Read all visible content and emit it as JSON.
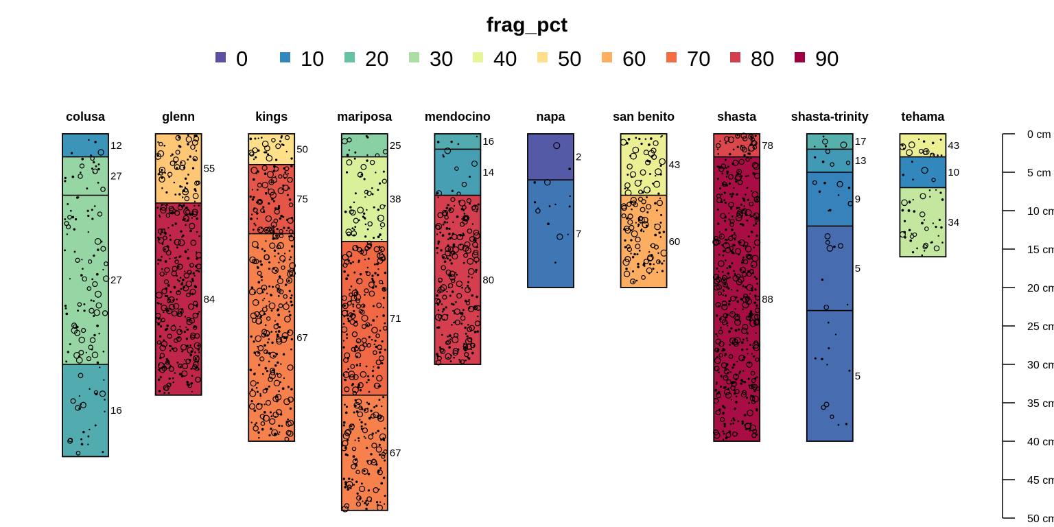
{
  "chart_data": {
    "type": "soil-profile-sketch",
    "title": "frag_pct",
    "legend": {
      "values": [
        "0",
        "10",
        "20",
        "30",
        "40",
        "50",
        "60",
        "70",
        "80",
        "90"
      ],
      "colors": [
        "#5E4FA2",
        "#3288BD",
        "#66C2A5",
        "#ABDDA4",
        "#E6F598",
        "#FEE08B",
        "#FDAE61",
        "#F46D43",
        "#D53E4F",
        "#9E0142"
      ]
    },
    "depth_axis": {
      "ticks": [
        0,
        5,
        10,
        15,
        20,
        25,
        30,
        35,
        40,
        45,
        50
      ],
      "tick_labels": [
        "0 cm",
        "5 cm",
        "10 cm",
        "15 cm",
        "20 cm",
        "25 cm",
        "30 cm",
        "35 cm",
        "40 cm",
        "45 cm",
        "50 cm"
      ],
      "range": [
        0,
        50
      ]
    },
    "profiles": [
      {
        "name": "colusa",
        "horizons": [
          {
            "top": 0,
            "bottom": 3,
            "value": 12
          },
          {
            "top": 3,
            "bottom": 8,
            "value": 27
          },
          {
            "top": 8,
            "bottom": 30,
            "value": 27
          },
          {
            "top": 30,
            "bottom": 42,
            "value": 16
          }
        ]
      },
      {
        "name": "glenn",
        "horizons": [
          {
            "top": 0,
            "bottom": 9,
            "value": 55
          },
          {
            "top": 9,
            "bottom": 34,
            "value": 84
          }
        ]
      },
      {
        "name": "kings",
        "horizons": [
          {
            "top": 0,
            "bottom": 4,
            "value": 50
          },
          {
            "top": 4,
            "bottom": 13,
            "value": 75
          },
          {
            "top": 13,
            "bottom": 40,
            "value": 67
          }
        ]
      },
      {
        "name": "mariposa",
        "horizons": [
          {
            "top": 0,
            "bottom": 3,
            "value": 25
          },
          {
            "top": 3,
            "bottom": 14,
            "value": 38
          },
          {
            "top": 14,
            "bottom": 34,
            "value": 71
          },
          {
            "top": 34,
            "bottom": 49,
            "value": 67
          }
        ]
      },
      {
        "name": "mendocino",
        "horizons": [
          {
            "top": 0,
            "bottom": 2,
            "value": 16
          },
          {
            "top": 2,
            "bottom": 8,
            "value": 14
          },
          {
            "top": 8,
            "bottom": 30,
            "value": 80
          }
        ]
      },
      {
        "name": "napa",
        "horizons": [
          {
            "top": 0,
            "bottom": 6,
            "value": 2
          },
          {
            "top": 6,
            "bottom": 20,
            "value": 7
          }
        ]
      },
      {
        "name": "san benito",
        "horizons": [
          {
            "top": 0,
            "bottom": 8,
            "value": 43
          },
          {
            "top": 8,
            "bottom": 20,
            "value": 60
          }
        ]
      },
      {
        "name": "shasta",
        "horizons": [
          {
            "top": 0,
            "bottom": 3,
            "value": 78
          },
          {
            "top": 3,
            "bottom": 40,
            "value": 88
          }
        ]
      },
      {
        "name": "shasta-trinity",
        "horizons": [
          {
            "top": 0,
            "bottom": 2,
            "value": 17
          },
          {
            "top": 2,
            "bottom": 5,
            "value": 13
          },
          {
            "top": 5,
            "bottom": 12,
            "value": 9
          },
          {
            "top": 12,
            "bottom": 23,
            "value": 5
          },
          {
            "top": 23,
            "bottom": 40,
            "value": 5
          }
        ]
      },
      {
        "name": "tehama",
        "horizons": [
          {
            "top": 0,
            "bottom": 3,
            "value": 43
          },
          {
            "top": 3,
            "bottom": 7,
            "value": 10
          },
          {
            "top": 7,
            "bottom": 16,
            "value": 34
          }
        ]
      }
    ]
  }
}
